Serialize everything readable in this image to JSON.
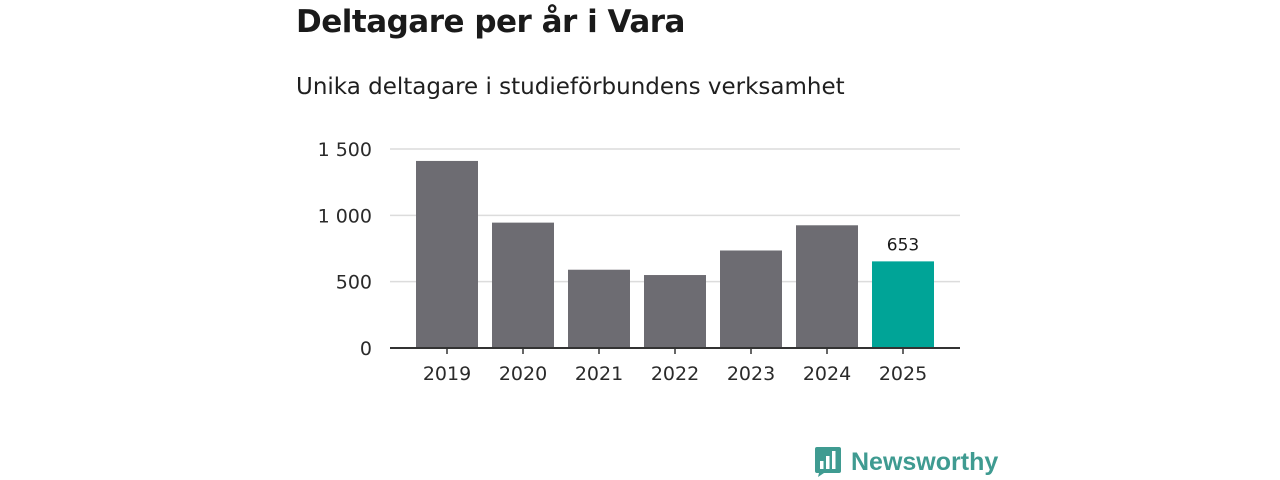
{
  "title": "Deltagare per år i Vara",
  "subtitle": "Unika deltagare i studieförbundens verksamhet",
  "brand": {
    "name": "Newsworthy",
    "icon": "bar-chart-logo-icon",
    "color": "#3f9b91"
  },
  "colors": {
    "bar": "#6d6c72",
    "highlight": "#00a497"
  },
  "chart_data": {
    "type": "bar",
    "categories": [
      "2019",
      "2020",
      "2021",
      "2022",
      "2023",
      "2024",
      "2025"
    ],
    "values": [
      1410,
      945,
      590,
      550,
      735,
      925,
      653
    ],
    "highlight_index": 6,
    "data_labels": [
      {
        "index": 6,
        "text": "653"
      }
    ],
    "ylim": [
      0,
      1500
    ],
    "yticks": [
      0,
      500,
      1000,
      1500
    ],
    "ytick_labels": [
      "0",
      "500",
      "1 000",
      "1 500"
    ],
    "grid": true,
    "legend": "none"
  }
}
